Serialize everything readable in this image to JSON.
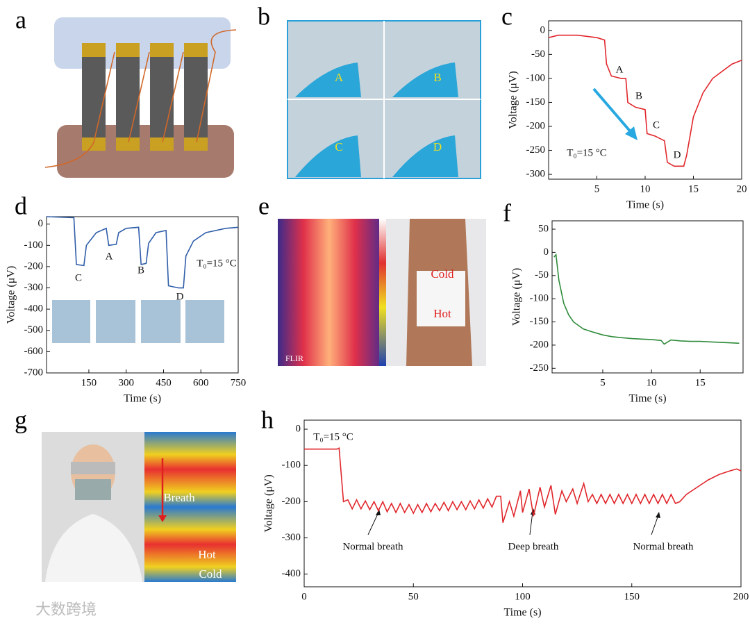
{
  "panel_labels": [
    "a",
    "b",
    "c",
    "d",
    "e",
    "f",
    "g",
    "h"
  ],
  "photo_labels": {
    "b": [
      "A",
      "B",
      "C",
      "D"
    ],
    "e": [
      "Cold",
      "Hot",
      "FLIR"
    ],
    "g": [
      "Breath",
      "Hot",
      "Cold"
    ]
  },
  "watermark": "大数跨境",
  "chart_data": [
    {
      "type": "line",
      "xlabel": "Time (s)",
      "ylabel": "Voltage (μV)",
      "color": "#e0262b",
      "xlim": [
        0,
        20
      ],
      "ylim": [
        -310,
        20
      ],
      "xticks": [
        5,
        10,
        15,
        20
      ],
      "yticks": [
        0,
        -50,
        -100,
        -150,
        -200,
        -250,
        -300
      ],
      "annotations": [
        "A",
        "B",
        "C",
        "D",
        "T₀=15 °C"
      ],
      "x": [
        0,
        1,
        3,
        5,
        5.8,
        6,
        6.5,
        7.5,
        8,
        8.2,
        9,
        10,
        10.2,
        11,
        11.5,
        12,
        12.3,
        13,
        14,
        14.3,
        15,
        16,
        17,
        18,
        19,
        20
      ],
      "values": [
        -15,
        -10,
        -10,
        -15,
        -20,
        -70,
        -95,
        -100,
        -100,
        -150,
        -160,
        -165,
        -215,
        -220,
        -225,
        -230,
        -275,
        -283,
        -283,
        -260,
        -180,
        -130,
        -100,
        -85,
        -70,
        -62
      ]
    },
    {
      "type": "line",
      "xlabel": "Time (s)",
      "ylabel": "Voltage (μV)",
      "color": "#2f5da8",
      "xlim": [
        -20,
        750
      ],
      "ylim": [
        -700,
        35
      ],
      "xticks": [
        150,
        300,
        450,
        600,
        750
      ],
      "yticks": [
        0,
        -100,
        -200,
        -300,
        -400,
        -500,
        -600,
        -700
      ],
      "annotations": [
        "C",
        "A",
        "B",
        "D",
        "T₀=15 °C"
      ],
      "x": [
        -20,
        90,
        100,
        130,
        140,
        180,
        220,
        230,
        260,
        270,
        300,
        350,
        360,
        380,
        390,
        420,
        460,
        470,
        510,
        530,
        540,
        570,
        620,
        700,
        750
      ],
      "values": [
        35,
        30,
        -190,
        -195,
        -100,
        -40,
        -20,
        -100,
        -95,
        -40,
        -20,
        -15,
        -190,
        -185,
        -90,
        -40,
        -30,
        -290,
        -300,
        -300,
        -150,
        -80,
        -40,
        -20,
        -15
      ]
    },
    {
      "type": "line",
      "xlabel": "Time (s)",
      "ylabel": "Voltage (μV)",
      "color": "#2e8b3a",
      "xlim": [
        -0.2,
        19.4
      ],
      "ylim": [
        -260,
        68
      ],
      "xticks": [
        5,
        10,
        15
      ],
      "yticks": [
        50,
        0,
        -50,
        -100,
        -150,
        -200,
        -250
      ],
      "annotations": [],
      "x": [
        0,
        0.2,
        0.5,
        1,
        1.5,
        2,
        3,
        4,
        5,
        6,
        7,
        8,
        9,
        10,
        11,
        11.3,
        12,
        13,
        14,
        15,
        16,
        17,
        18,
        19
      ],
      "values": [
        -10,
        -5,
        -60,
        -110,
        -135,
        -150,
        -165,
        -172,
        -178,
        -182,
        -184,
        -186,
        -187,
        -188,
        -190,
        -198,
        -189,
        -191,
        -192,
        -192,
        -193,
        -194,
        -195,
        -196
      ]
    },
    {
      "type": "line",
      "xlabel": "Time (s)",
      "ylabel": "Voltage (μV)",
      "color": "#e0262b",
      "xlim": [
        0,
        200
      ],
      "ylim": [
        -435,
        25
      ],
      "xticks": [
        0,
        50,
        100,
        150,
        200
      ],
      "yticks": [
        0,
        -100,
        -200,
        -300,
        -400
      ],
      "annotations": [
        "T₀=15 °C",
        "Normal breath",
        "Deep breath",
        "Normal breath"
      ],
      "x": [
        0,
        15,
        16,
        18,
        20,
        22,
        24,
        26,
        28,
        30,
        32,
        34,
        36,
        38,
        40,
        42,
        44,
        46,
        48,
        50,
        52,
        54,
        56,
        58,
        60,
        62,
        64,
        66,
        68,
        70,
        72,
        74,
        76,
        78,
        80,
        82,
        84,
        86,
        88,
        90,
        91,
        94,
        96,
        99,
        100,
        103,
        105,
        108,
        110,
        113,
        115,
        118,
        120,
        123,
        125,
        128,
        130,
        132,
        134,
        136,
        138,
        140,
        142,
        144,
        146,
        148,
        150,
        152,
        154,
        156,
        158,
        160,
        162,
        164,
        166,
        168,
        170,
        172,
        175,
        180,
        185,
        190,
        195,
        198,
        200
      ],
      "values": [
        -55,
        -55,
        -52,
        -200,
        -195,
        -220,
        -195,
        -220,
        -198,
        -222,
        -200,
        -225,
        -200,
        -228,
        -205,
        -230,
        -205,
        -230,
        -208,
        -232,
        -208,
        -230,
        -205,
        -228,
        -205,
        -225,
        -202,
        -225,
        -200,
        -222,
        -200,
        -222,
        -198,
        -220,
        -195,
        -218,
        -192,
        -215,
        -185,
        -185,
        -258,
        -200,
        -240,
        -170,
        -230,
        -165,
        -240,
        -160,
        -215,
        -155,
        -235,
        -170,
        -200,
        -165,
        -205,
        -150,
        -200,
        -180,
        -205,
        -180,
        -205,
        -180,
        -205,
        -180,
        -205,
        -180,
        -205,
        -180,
        -205,
        -180,
        -205,
        -180,
        -205,
        -180,
        -205,
        -180,
        -205,
        -200,
        -180,
        -160,
        -140,
        -125,
        -115,
        -110,
        -115
      ]
    }
  ]
}
